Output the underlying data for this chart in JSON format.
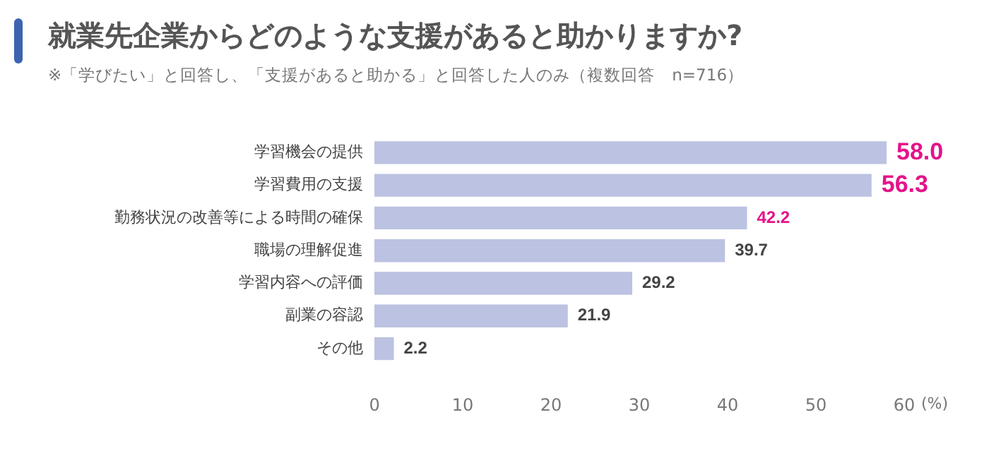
{
  "chart_data": {
    "type": "bar",
    "orientation": "horizontal",
    "title": "就業先企業からどのような支援があると助かりますか?",
    "subtitle": "※「学びたい」と回答し、「支援があると助かる」と回答した人のみ（複数回答　n=716）",
    "categories": [
      "学習機会の提供",
      "学習費用の支援",
      "勤務状況の改善等による時間の確保",
      "職場の理解促進",
      "学習内容への評価",
      "副業の容認",
      "その他"
    ],
    "values": [
      58.0,
      56.3,
      42.2,
      39.7,
      29.2,
      21.9,
      2.2
    ],
    "color": "#bcc2e1",
    "xlabel": "(%)",
    "xlim": [
      0,
      60
    ],
    "xticks": [
      0,
      10,
      20,
      30,
      40,
      50,
      60
    ],
    "value_labels": [
      "58.0",
      "56.3",
      "42.2",
      "39.7",
      "29.2",
      "21.9",
      "2.2"
    ],
    "grid": false,
    "legend": false
  }
}
